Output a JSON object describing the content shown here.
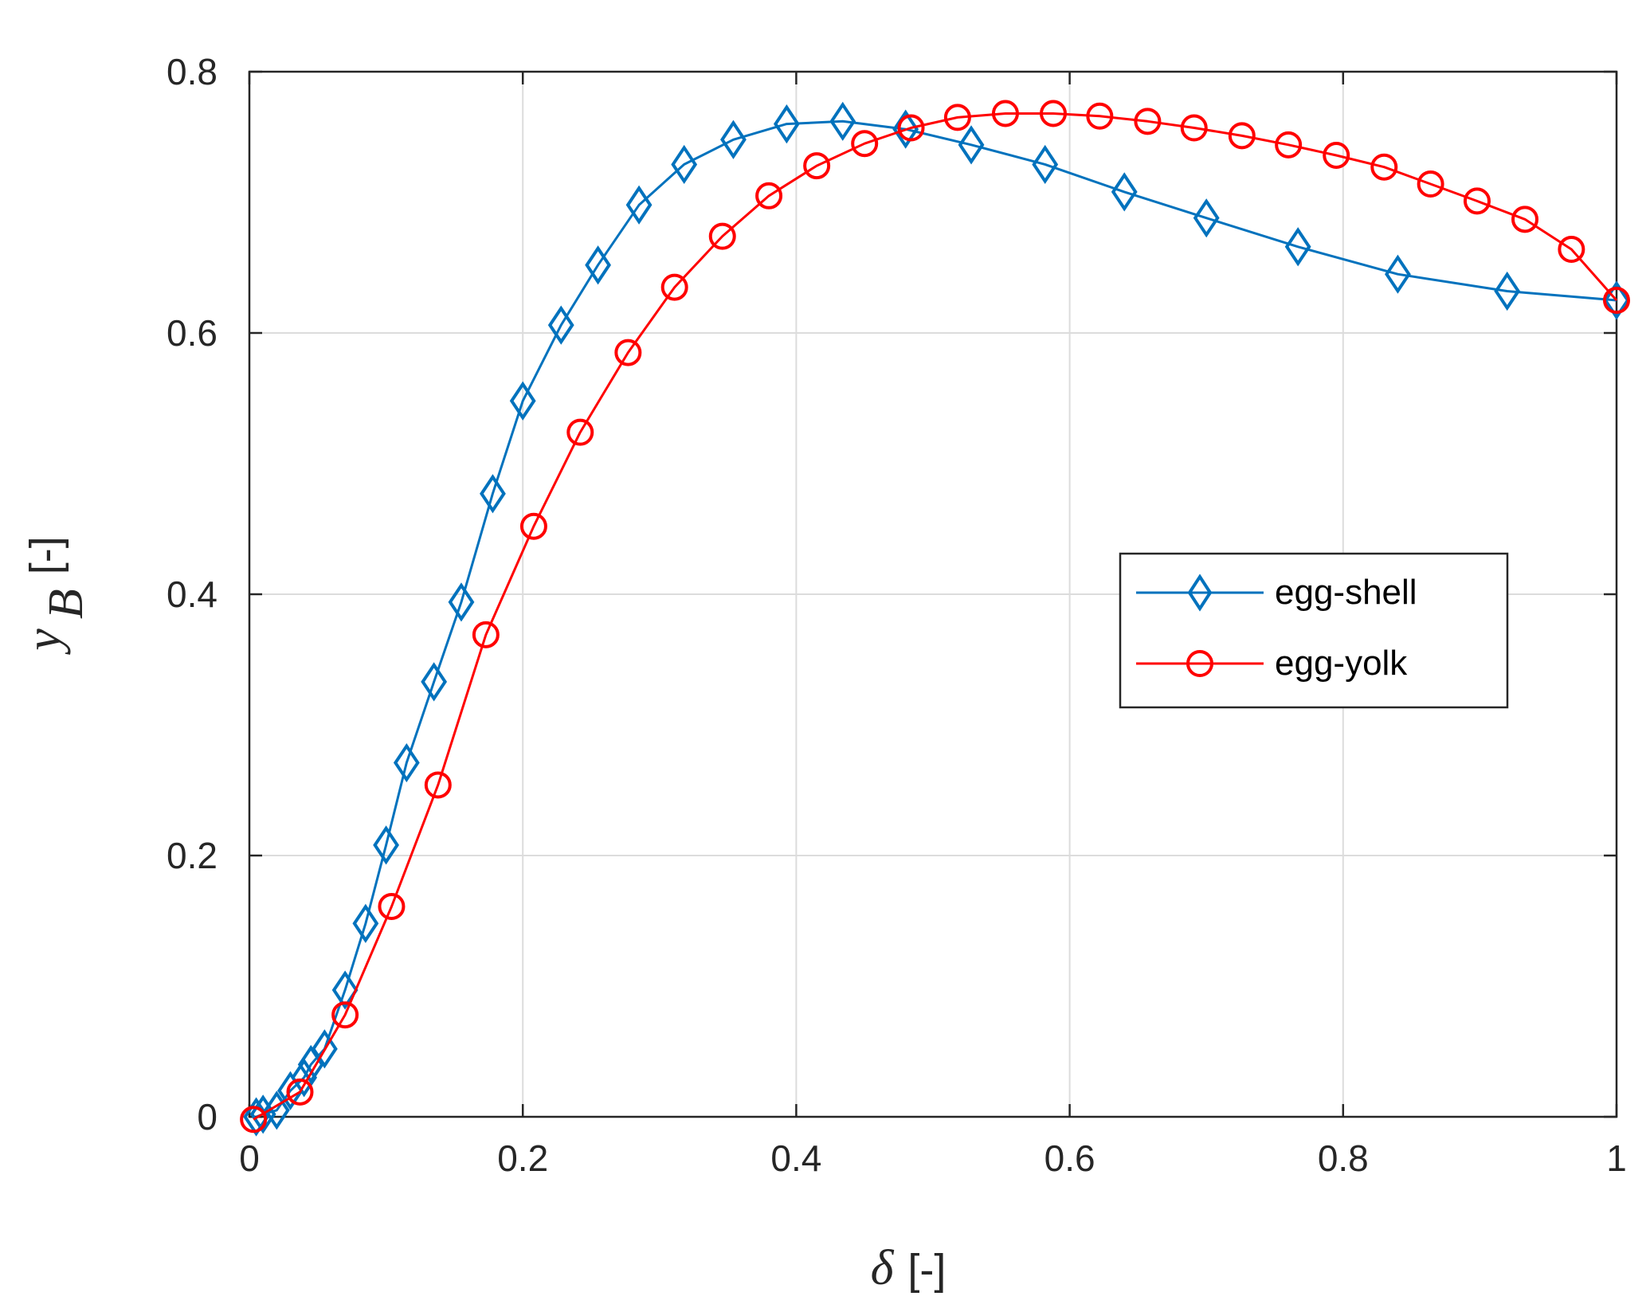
{
  "chart_data": {
    "type": "line",
    "title": "",
    "xlabel_symbol": "δ",
    "xlabel_unit": "[-]",
    "ylabel_symbol": "y",
    "ylabel_subscript": "B",
    "ylabel_unit": "[-]",
    "xlim": [
      0,
      1
    ],
    "ylim": [
      0,
      0.8
    ],
    "xticks": [
      0,
      0.2,
      0.4,
      0.6,
      0.8,
      1
    ],
    "xtick_labels": [
      "0",
      "0.2",
      "0.4",
      "0.6",
      "0.8",
      "1"
    ],
    "yticks": [
      0,
      0.2,
      0.4,
      0.6,
      0.8
    ],
    "ytick_labels": [
      "0",
      "0.2",
      "0.4",
      "0.6",
      "0.8"
    ],
    "grid": true,
    "legend_position": "center-right",
    "series": [
      {
        "name": "egg-shell",
        "color": "#0072BD",
        "marker": "diamond",
        "x": [
          0.005,
          0.01,
          0.02,
          0.03,
          0.04,
          0.045,
          0.055,
          0.07,
          0.085,
          0.1,
          0.115,
          0.135,
          0.155,
          0.178,
          0.2,
          0.228,
          0.255,
          0.285,
          0.318,
          0.354,
          0.393,
          0.434,
          0.48,
          0.528,
          0.582,
          0.64,
          0.7,
          0.767,
          0.84,
          0.92,
          1.0
        ],
        "y": [
          0.0,
          0.002,
          0.005,
          0.02,
          0.03,
          0.04,
          0.052,
          0.097,
          0.148,
          0.208,
          0.271,
          0.333,
          0.394,
          0.477,
          0.548,
          0.606,
          0.652,
          0.698,
          0.729,
          0.748,
          0.76,
          0.762,
          0.756,
          0.744,
          0.729,
          0.708,
          0.688,
          0.666,
          0.645,
          0.632,
          0.625
        ]
      },
      {
        "name": "egg-yolk",
        "color": "#FF0000",
        "marker": "circle",
        "x": [
          0.003,
          0.037,
          0.07,
          0.104,
          0.138,
          0.173,
          0.208,
          0.242,
          0.277,
          0.311,
          0.346,
          0.38,
          0.415,
          0.45,
          0.484,
          0.518,
          0.553,
          0.588,
          0.622,
          0.657,
          0.691,
          0.726,
          0.76,
          0.795,
          0.83,
          0.864,
          0.898,
          0.933,
          0.967,
          1.0
        ],
        "y": [
          -0.002,
          0.019,
          0.078,
          0.161,
          0.254,
          0.369,
          0.452,
          0.524,
          0.585,
          0.635,
          0.674,
          0.705,
          0.728,
          0.745,
          0.757,
          0.765,
          0.768,
          0.768,
          0.766,
          0.762,
          0.757,
          0.751,
          0.744,
          0.736,
          0.727,
          0.714,
          0.701,
          0.687,
          0.664,
          0.625
        ]
      }
    ]
  }
}
